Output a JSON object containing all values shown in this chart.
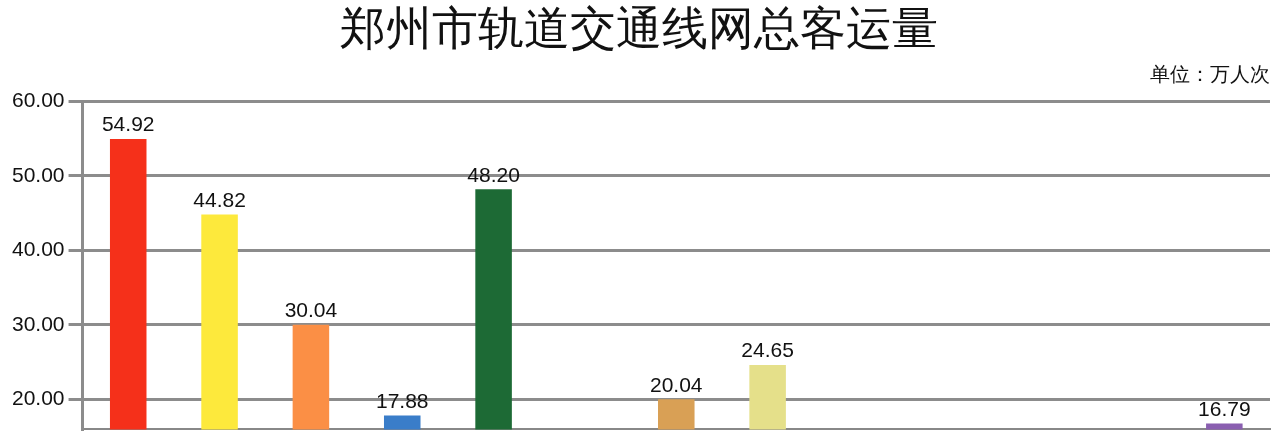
{
  "chart_data": {
    "type": "bar",
    "title": "郑州市轨道交通线网总客运量",
    "subtitle": "单位：万人次",
    "categories": [
      null,
      null,
      null,
      null,
      null,
      null,
      null,
      null,
      null,
      null,
      null,
      null,
      null
    ],
    "values": [
      54.92,
      44.82,
      30.04,
      17.88,
      48.2,
      null,
      20.04,
      24.65,
      null,
      null,
      null,
      null,
      16.79
    ],
    "value_labels": [
      "54.92",
      "44.82",
      "30.04",
      "17.88",
      "48.20",
      null,
      "20.04",
      "24.65",
      null,
      null,
      null,
      null,
      "16.79"
    ],
    "colors": [
      "#f5301a",
      "#fde93c",
      "#fb8f45",
      "#3a7dc9",
      "#1d6a35",
      "#999999",
      "#d9a055",
      "#e5e08a",
      "#999999",
      "#999999",
      "#999999",
      "#999999",
      "#8a5fb0"
    ],
    "ylim": [
      16,
      60
    ],
    "yticks": [
      {
        "value": 20,
        "label": "20.00"
      },
      {
        "value": 30,
        "label": "30.00"
      },
      {
        "value": 40,
        "label": "40.00"
      },
      {
        "value": 50,
        "label": "50.00"
      },
      {
        "value": 60,
        "label": "60.00"
      }
    ],
    "grid": "y",
    "legend": false
  }
}
